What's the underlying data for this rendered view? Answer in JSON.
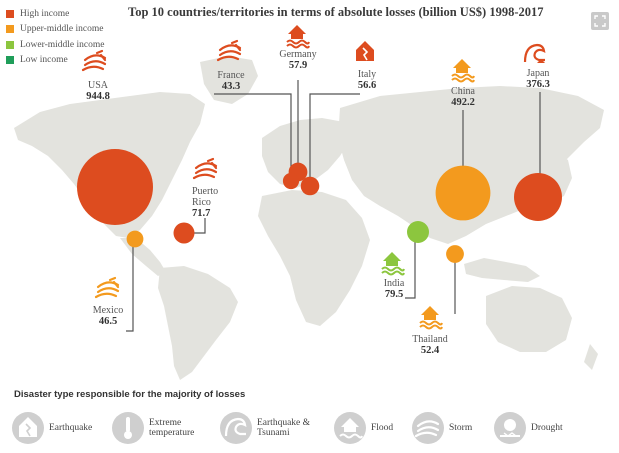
{
  "title": "Top 10 countries/territories in terms of absolute losses  (billion US$) 1998-2017",
  "colors": {
    "high": "#dd4c1f",
    "upper_middle": "#f39a1e",
    "lower_middle": "#8cc63e",
    "low": "#1f9e5a",
    "land": "#e3e3de",
    "leader": "#555555",
    "icon_grey": "#cfcfcf"
  },
  "legend": [
    {
      "label": "High income",
      "color": "#dd4c1f"
    },
    {
      "label": "Upper-middle income",
      "color": "#f39a1e"
    },
    {
      "label": "Lower-middle income",
      "color": "#8cc63e"
    },
    {
      "label": "Low income",
      "color": "#1f9e5a"
    }
  ],
  "chart_data": {
    "type": "bubble-map",
    "title": "Top 10 countries/territories in terms of absolute losses  (billion US$) 1998-2017",
    "unit": "billion US$",
    "countries": [
      {
        "name": "USA",
        "value": 944.8,
        "income": "high",
        "disaster": "storm"
      },
      {
        "name": "China",
        "value": 492.2,
        "income": "upper_middle",
        "disaster": "flood"
      },
      {
        "name": "Japan",
        "value": 376.3,
        "income": "high",
        "disaster": "earthquake-tsunami"
      },
      {
        "name": "India",
        "value": 79.5,
        "income": "lower_middle",
        "disaster": "flood"
      },
      {
        "name": "Puerto Rico",
        "value": 71.7,
        "income": "high",
        "disaster": "storm"
      },
      {
        "name": "Germany",
        "value": 57.9,
        "income": "high",
        "disaster": "flood"
      },
      {
        "name": "Italy",
        "value": 56.6,
        "income": "high",
        "disaster": "earthquake"
      },
      {
        "name": "Thailand",
        "value": 52.4,
        "income": "upper_middle",
        "disaster": "flood"
      },
      {
        "name": "Mexico",
        "value": 46.5,
        "income": "upper_middle",
        "disaster": "storm"
      },
      {
        "name": "France",
        "value": 43.3,
        "income": "high",
        "disaster": "storm"
      }
    ]
  },
  "disaster_legend": {
    "title": "Disaster type responsible for the majority of losses",
    "items": [
      {
        "icon": "earthquake-icon",
        "label_1": "Earthquake",
        "label_2": ""
      },
      {
        "icon": "thermometer-icon",
        "label_1": "Extreme",
        "label_2": "temperature"
      },
      {
        "icon": "earthquake-tsunami-icon",
        "label_1": "Earthquake &",
        "label_2": "Tsunami"
      },
      {
        "icon": "flood-icon",
        "label_1": "Flood",
        "label_2": ""
      },
      {
        "icon": "storm-icon",
        "label_1": "Storm",
        "label_2": ""
      },
      {
        "icon": "drought-icon",
        "label_1": "Drought",
        "label_2": ""
      }
    ]
  }
}
